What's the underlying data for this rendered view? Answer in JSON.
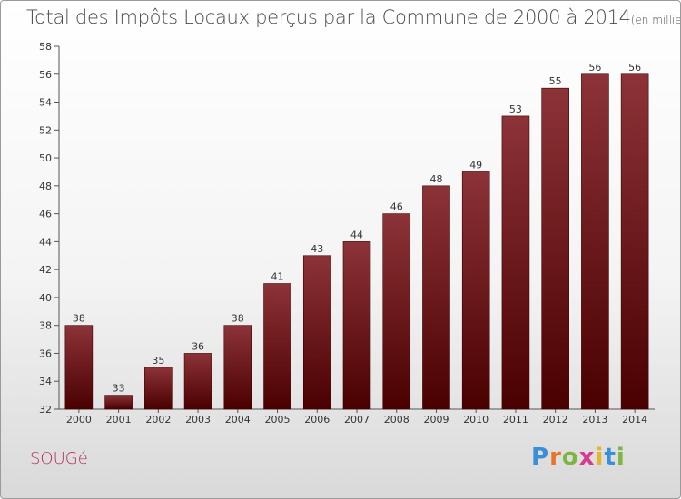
{
  "chart_data": {
    "type": "bar",
    "title": "Total des Impôts Locaux perçus par la Commune de 2000 à 2014",
    "unit_note": "(en milliers d'€)",
    "categories": [
      "2000",
      "2001",
      "2002",
      "2003",
      "2004",
      "2005",
      "2006",
      "2007",
      "2008",
      "2009",
      "2010",
      "2011",
      "2012",
      "2013",
      "2014"
    ],
    "values": [
      38,
      33,
      35,
      36,
      38,
      41,
      43,
      44,
      46,
      48,
      49,
      53,
      55,
      56,
      56
    ],
    "ylim": [
      32,
      58
    ],
    "yticks": [
      32,
      34,
      36,
      38,
      40,
      42,
      44,
      46,
      48,
      50,
      52,
      54,
      56,
      58
    ],
    "grid": false,
    "bar_color_top": "#8c3338",
    "bar_color_bottom": "#4a0000"
  },
  "commune": "SOUGé",
  "logo": {
    "letters": [
      "P",
      "r",
      "o",
      "x",
      "i",
      "t",
      "i"
    ],
    "colors": [
      "#3a8fd6",
      "#e8742a",
      "#7ab640",
      "#d63b8f",
      "#e8b52a",
      "#3a8fd6",
      "#7ab640"
    ]
  }
}
